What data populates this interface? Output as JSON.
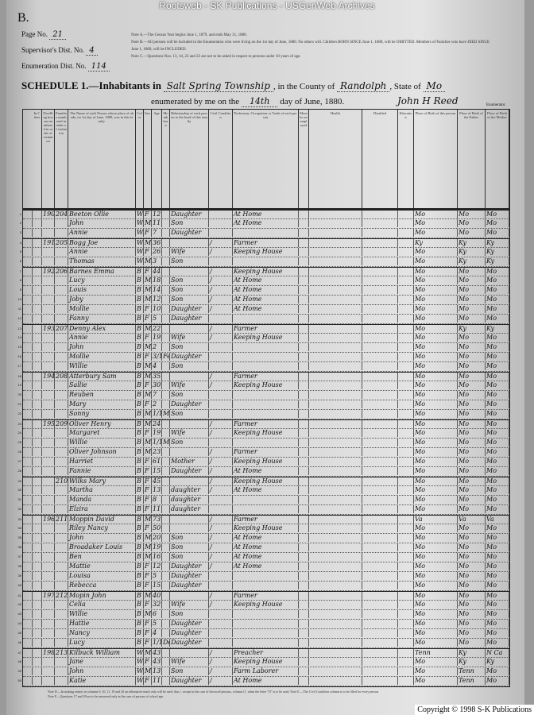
{
  "watermark": "Rootsweb - SK Publications - USGenWeb Archives",
  "form_letter": "B.",
  "page_no_label": "Page No.",
  "page_no": "21",
  "supervisor_label": "Supervisor's Dist. No.",
  "supervisor_no": "4",
  "enumeration_label": "Enumeration Dist. No.",
  "enumeration_no": "114",
  "notes": [
    "Note A.—The Census Year begins June 1, 1879, and ends May 31, 1880.",
    "Note B.—All persons will be included in the Enumeration who were living on the 1st day of June, 1880. No others will. Children BORN SINCE June 1, 1880, will be OMITTED. Members of Families who have DIED SINCE June 1, 1880, will be INCLUDED.",
    "Note C.—Questions Nos. 13, 14, 22 and 23 are not to be asked in respect to persons under 10 years of age."
  ],
  "schedule": {
    "title": "SCHEDULE 1.—Inhabitants in",
    "township": "Salt Spring Township",
    "county_label": ", in the County of",
    "county": "Randolph",
    "state_label": ", State of",
    "state": "Mo",
    "enumerated_label": "enumerated by me on the",
    "day": "14th",
    "date_suffix": "day of June, 1880.",
    "enumerator": "John H Reed",
    "enumerator_label": "Enumerator."
  },
  "columns": [
    "In Cities",
    "Dwelling houses numbered in order of visitation",
    "Families numbered in order of visitation",
    "The Name of each Person whose place of abode, on 1st day of June, 1880, was in this family.",
    "Color",
    "Sex",
    "Age",
    "Month born",
    "Relationship of each person to the head of this family",
    "Civil Condition",
    "Profession, Occupation or Trade of each person",
    "Months unemployed",
    "Health",
    "Disabled",
    "Education",
    "Place of Birth of this person",
    "Place of Birth of the Father",
    "Place of Birth of the Mother"
  ],
  "rows": [
    [
      "190",
      "204",
      "Beeton Ollie",
      "W",
      "F",
      "12",
      "",
      "Daughter",
      "",
      "At Home",
      "Mo",
      "Mo",
      "Mo"
    ],
    [
      "",
      "",
      "John",
      "W",
      "M",
      "11",
      "",
      "Son",
      "",
      "At Home",
      "Mo",
      "Mo",
      "Mo"
    ],
    [
      "",
      "",
      "Annie",
      "W",
      "F",
      "7",
      "",
      "Daughter",
      "",
      "",
      "Mo",
      "Mo",
      "Mo"
    ],
    [
      "191",
      "205",
      "Bogg Joe",
      "W",
      "M",
      "36",
      "",
      "",
      "/",
      "Farmer",
      "Ky",
      "Ky",
      "Ky"
    ],
    [
      "",
      "",
      "Annie",
      "W",
      "F",
      "26",
      "",
      "Wife",
      "/",
      "Keeping House",
      "Mo",
      "Ky",
      "Ky"
    ],
    [
      "",
      "",
      "Thomas",
      "W",
      "M",
      "3",
      "",
      "Son",
      "",
      "",
      "Mo",
      "Ky",
      "Ky"
    ],
    [
      "192",
      "206",
      "Barnes Emma",
      "B",
      "F",
      "44",
      "",
      "",
      "/",
      "Keeping House",
      "Mo",
      "Mo",
      "Mo"
    ],
    [
      "",
      "",
      "Lucy",
      "B",
      "M",
      "18",
      "",
      "Son",
      "/",
      "At Home",
      "Mo",
      "Mo",
      "Mo"
    ],
    [
      "",
      "",
      "Louis",
      "B",
      "M",
      "14",
      "",
      "Son",
      "/",
      "At Home",
      "Mo",
      "Mo",
      "Mo"
    ],
    [
      "",
      "",
      "Joby",
      "B",
      "M",
      "12",
      "",
      "Son",
      "/",
      "At Home",
      "Mo",
      "Mo",
      "Mo"
    ],
    [
      "",
      "",
      "Mollie",
      "B",
      "F",
      "10",
      "",
      "Daughter",
      "/",
      "At Home",
      "Mo",
      "Mo",
      "Mo"
    ],
    [
      "",
      "",
      "Fanny",
      "B",
      "F",
      "5",
      "",
      "Daughter",
      "",
      "",
      "Mo",
      "Mo",
      "Mo"
    ],
    [
      "193",
      "207",
      "Denny Alex",
      "B",
      "M",
      "22",
      "",
      "",
      "/",
      "Farmer",
      "Mo",
      "Ky",
      "Ky"
    ],
    [
      "",
      "",
      "Annie",
      "B",
      "F",
      "19",
      "",
      "Wife",
      "/",
      "Keeping House",
      "Mo",
      "Mo",
      "Mo"
    ],
    [
      "",
      "",
      "John",
      "B",
      "M",
      "2",
      "",
      "Son",
      "",
      "",
      "Mo",
      "Mo",
      "Mo"
    ],
    [
      "",
      "",
      "Mollie",
      "B",
      "F",
      "3/12",
      "Feb",
      "Daughter",
      "",
      "",
      "Mo",
      "Mo",
      "Mo"
    ],
    [
      "",
      "",
      "Willie",
      "B",
      "M",
      "4",
      "",
      "Son",
      "",
      "",
      "Mo",
      "Mo",
      "Mo"
    ],
    [
      "194",
      "208",
      "Atterbury Sam",
      "B",
      "M",
      "35",
      "",
      "",
      "/",
      "Farmer",
      "Mo",
      "Mo",
      "Mo"
    ],
    [
      "",
      "",
      "Sallie",
      "B",
      "F",
      "30",
      "",
      "Wife",
      "/",
      "Keeping House",
      "Mo",
      "Mo",
      "Mo"
    ],
    [
      "",
      "",
      "Reuben",
      "B",
      "M",
      "7",
      "",
      "Son",
      "",
      "",
      "Mo",
      "Mo",
      "Mo"
    ],
    [
      "",
      "",
      "Mary",
      "B",
      "F",
      "2",
      "",
      "Daughter",
      "",
      "",
      "Mo",
      "Mo",
      "Mo"
    ],
    [
      "",
      "",
      "Sonny",
      "B",
      "M",
      "1/12",
      "Mch",
      "Son",
      "",
      "",
      "Mo",
      "Mo",
      "Mo"
    ],
    [
      "195",
      "209",
      "Oliver Henry",
      "B",
      "M",
      "24",
      "",
      "",
      "/",
      "Farmer",
      "Mo",
      "Mo",
      "Mo"
    ],
    [
      "",
      "",
      "Margaret",
      "B",
      "F",
      "19",
      "",
      "Wife",
      "/",
      "Keeping House",
      "Mo",
      "Mo",
      "Mo"
    ],
    [
      "",
      "",
      "Willie",
      "B",
      "M",
      "1/12",
      "Mch",
      "Son",
      "",
      "",
      "Mo",
      "Mo",
      "Mo"
    ],
    [
      "",
      "",
      "Oliver Johnson",
      "B",
      "M",
      "23",
      "",
      "",
      "/",
      "Farmer",
      "Mo",
      "Mo",
      "Mo"
    ],
    [
      "",
      "",
      "Harriet",
      "B",
      "F",
      "61",
      "",
      "Mother",
      "/",
      "Keeping House",
      "Mo",
      "Mo",
      "Mo"
    ],
    [
      "",
      "",
      "Fannie",
      "B",
      "F",
      "15",
      "",
      "Daughter",
      "/",
      "At Home",
      "Mo",
      "Mo",
      "Mo"
    ],
    [
      "",
      "210",
      "Wilks Mary",
      "B",
      "F",
      "45",
      "",
      "",
      "/",
      "Keeping House",
      "Mo",
      "Mo",
      "Mo"
    ],
    [
      "",
      "",
      "Martha",
      "B",
      "F",
      "13",
      "",
      "daughter",
      "/",
      "At Home",
      "Mo",
      "Mo",
      "Mo"
    ],
    [
      "",
      "",
      "Manda",
      "B",
      "F",
      "8",
      "",
      "daughter",
      "",
      "",
      "Mo",
      "Mo",
      "Mo"
    ],
    [
      "",
      "",
      "Elzira",
      "B",
      "F",
      "11",
      "",
      "daughter",
      "",
      "",
      "Mo",
      "Mo",
      "Mo"
    ],
    [
      "196",
      "211",
      "Moppin David",
      "B",
      "M",
      "73",
      "",
      "",
      "/",
      "Farmer",
      "Va",
      "Va",
      "Va"
    ],
    [
      "",
      "",
      "Riley Nancy",
      "B",
      "F",
      "50",
      "",
      "",
      "/",
      "Keeping House",
      "Mo",
      "Mo",
      "Mo"
    ],
    [
      "",
      "",
      "John",
      "B",
      "M",
      "20",
      "",
      "Son",
      "/",
      "At Home",
      "Mo",
      "Mo",
      "Mo"
    ],
    [
      "",
      "",
      "Broadaker Louis",
      "B",
      "M",
      "19",
      "",
      "Son",
      "/",
      "At Home",
      "Mo",
      "Mo",
      "Mo"
    ],
    [
      "",
      "",
      "Ben",
      "B",
      "M",
      "16",
      "",
      "Son",
      "/",
      "At Home",
      "Mo",
      "Mo",
      "Mo"
    ],
    [
      "",
      "",
      "Mattie",
      "B",
      "F",
      "12",
      "",
      "Daughter",
      "/",
      "At Home",
      "Mo",
      "Mo",
      "Mo"
    ],
    [
      "",
      "",
      "Louisa",
      "B",
      "F",
      "5",
      "",
      "Daughter",
      "",
      "",
      "Mo",
      "Mo",
      "Mo"
    ],
    [
      "",
      "",
      "Rebecca",
      "B",
      "F",
      "15",
      "",
      "Daughter",
      "",
      "",
      "Mo",
      "Mo",
      "Mo"
    ],
    [
      "197",
      "212",
      "Mopin John",
      "B",
      "M",
      "40",
      "",
      "",
      "/",
      "Farmer",
      "Mo",
      "Mo",
      "Mo"
    ],
    [
      "",
      "",
      "Celia",
      "B",
      "F",
      "32",
      "",
      "Wife",
      "/",
      "Keeping House",
      "Mo",
      "Mo",
      "Mo"
    ],
    [
      "",
      "",
      "Willie",
      "B",
      "M",
      "6",
      "",
      "Son",
      "",
      "",
      "Mo",
      "Mo",
      "Mo"
    ],
    [
      "",
      "",
      "Hattie",
      "B",
      "F",
      "5",
      "",
      "Daughter",
      "",
      "",
      "Mo",
      "Mo",
      "Mo"
    ],
    [
      "",
      "",
      "Nancy",
      "B",
      "F",
      "4",
      "",
      "Daughter",
      "",
      "",
      "Mo",
      "Mo",
      "Mo"
    ],
    [
      "",
      "",
      "Lucy",
      "B",
      "F",
      "1/12",
      "Dec",
      "Daughter",
      "",
      "",
      "Mo",
      "Mo",
      "Mo"
    ],
    [
      "198",
      "213",
      "Kilbuck William",
      "W",
      "M",
      "43",
      "",
      "",
      "/",
      "Preacher",
      "Tenn",
      "Ky",
      "N Ca"
    ],
    [
      "",
      "",
      "Jane",
      "W",
      "F",
      "43",
      "",
      "Wife",
      "/",
      "Keeping House",
      "Mo",
      "Ky",
      "Ky"
    ],
    [
      "",
      "",
      "John",
      "W",
      "M",
      "13",
      "",
      "Son",
      "/",
      "Farm Laborer",
      "Mo",
      "Tenn",
      "Mo"
    ],
    [
      "",
      "",
      "Katie",
      "W",
      "F",
      "11",
      "",
      "Daughter",
      "/",
      "At Home",
      "Mo",
      "Tenn",
      "Mo"
    ]
  ],
  "footnote": "Note D.—In making entries in columns 9, 10, 11, 19 and 20 an affirmative mark only will be used, thus /, except in the case of divorced persons, column 11, when the letter \"D\" is to be used. Note E.—The Civil Condition column is to be filled for every person. Note F.—Questions 17 and 18 are to be answered only in the case of persons of school age.",
  "copyright": "Copyright © 1998 S-K Publications"
}
